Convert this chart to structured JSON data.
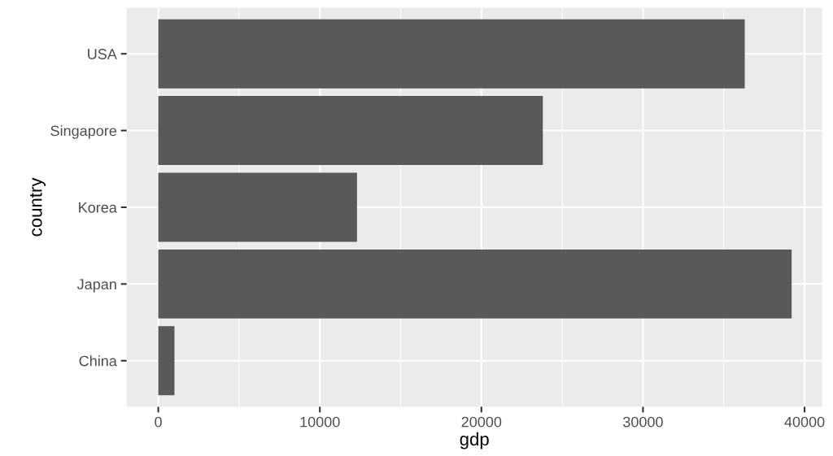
{
  "chart_data": {
    "type": "bar",
    "orientation": "horizontal",
    "xlabel": "gdp",
    "ylabel": "country",
    "categories": [
      "USA",
      "Singapore",
      "Korea",
      "Japan",
      "China"
    ],
    "values": [
      36300,
      23800,
      12300,
      39200,
      1000
    ],
    "color": "#595959",
    "xlim": [
      -1960,
      41090
    ],
    "xticks": [
      0,
      10000,
      20000,
      30000,
      40000
    ],
    "grid": true
  }
}
